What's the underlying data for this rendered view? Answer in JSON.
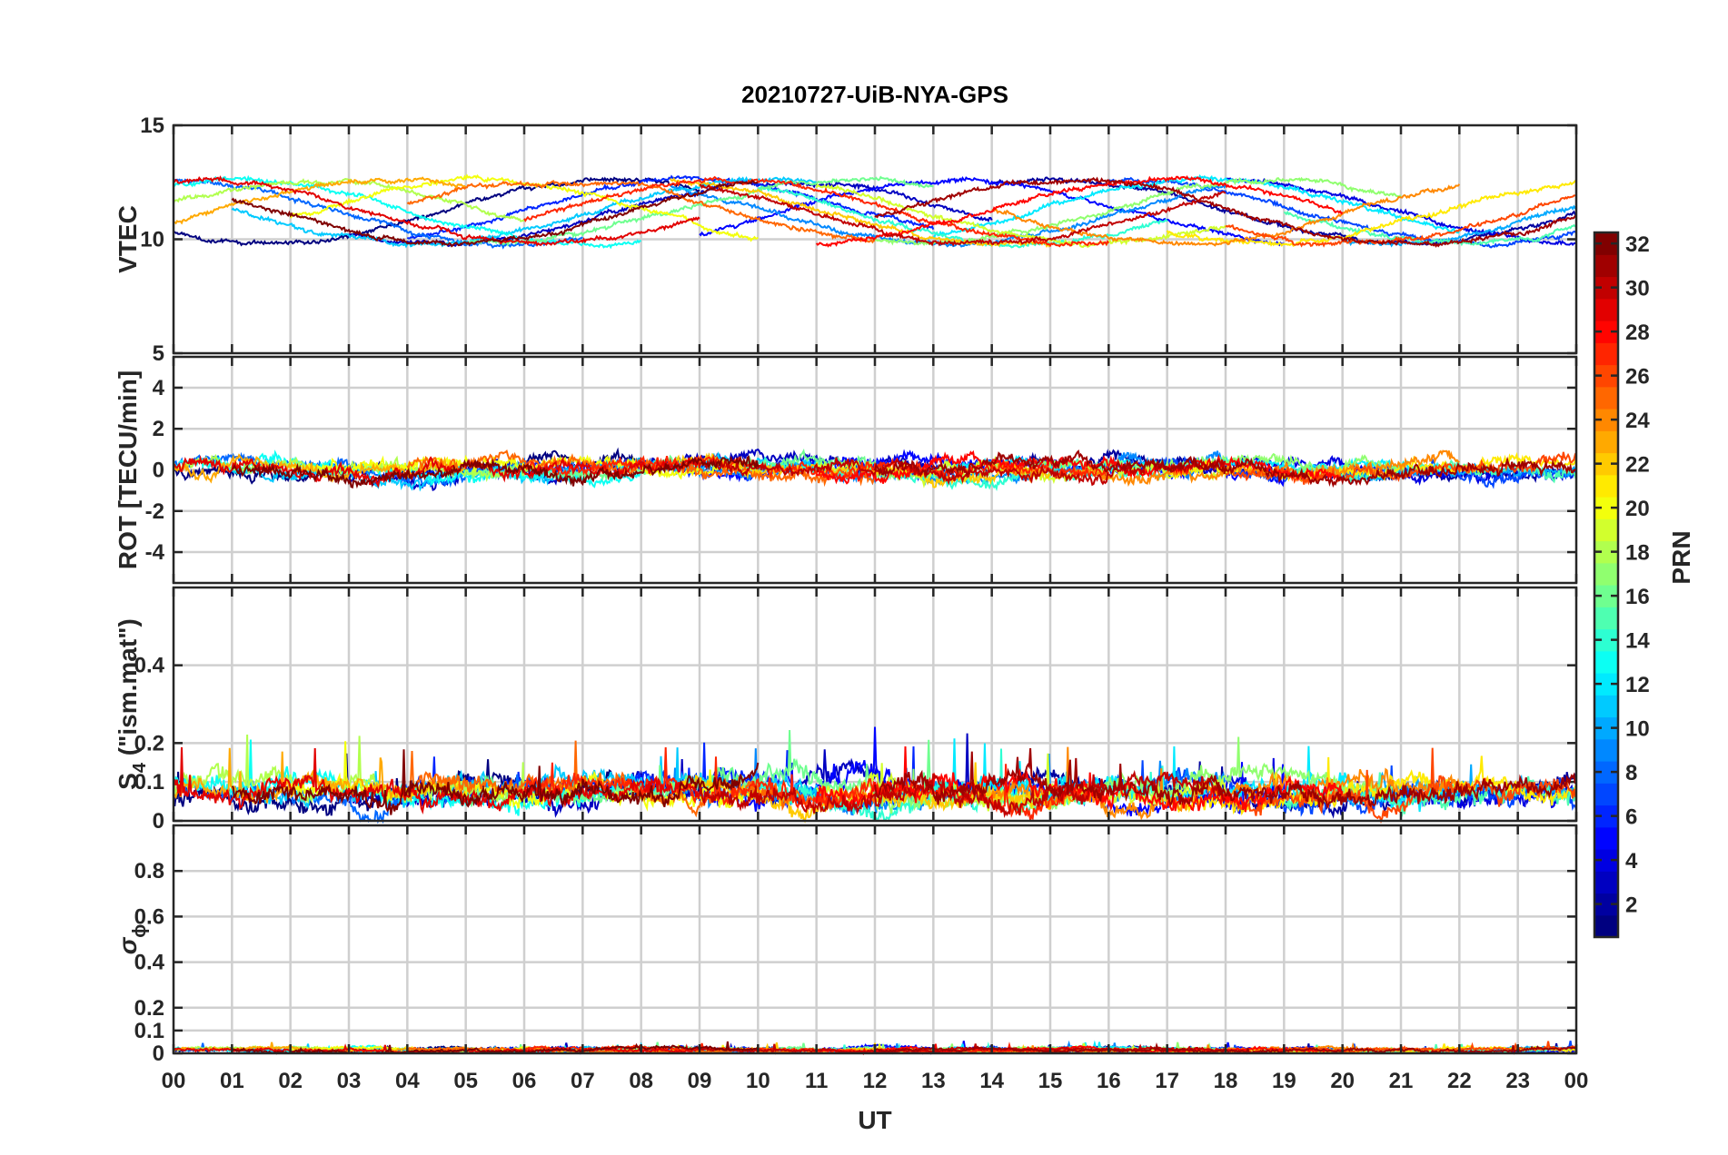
{
  "chart_data": {
    "type": "line",
    "title": "20210727-UiB-NYA-GPS",
    "xlabel": "UT",
    "x_ticks": [
      "00",
      "01",
      "02",
      "03",
      "04",
      "05",
      "06",
      "07",
      "08",
      "09",
      "10",
      "11",
      "12",
      "13",
      "14",
      "15",
      "16",
      "17",
      "18",
      "19",
      "20",
      "21",
      "22",
      "23",
      "00"
    ],
    "xlim_hours": [
      0,
      24
    ],
    "grid": true,
    "colorbar": {
      "label": "PRN",
      "range": [
        1,
        32
      ],
      "ticks": [
        "2",
        "4",
        "6",
        "8",
        "10",
        "12",
        "14",
        "16",
        "18",
        "20",
        "22",
        "24",
        "26",
        "28",
        "30",
        "32"
      ],
      "colormap": "jet"
    },
    "panels": [
      {
        "id": "vtec",
        "ylabel": "VTEC",
        "ylim": [
          5,
          15
        ],
        "yticks": [
          "5",
          "10",
          "15"
        ],
        "ytick_values": [
          5,
          10,
          15
        ],
        "baseline": 11.2,
        "amplitude": 1.4,
        "noise": 0.12
      },
      {
        "id": "rot",
        "ylabel": "ROT [TECU/min]",
        "ylim": [
          -5.5,
          5.5
        ],
        "yticks": [
          "-4",
          "-2",
          "0",
          "2",
          "4"
        ],
        "ytick_values": [
          -4,
          -2,
          0,
          2,
          4
        ],
        "baseline": 0.05,
        "amplitude": 0.25,
        "noise": 0.35
      },
      {
        "id": "s4",
        "ylabel_main": "S",
        "ylabel_sub": "4",
        "ylabel_rest": " (\"ism.mat\")",
        "ylim": [
          0,
          0.6
        ],
        "yticks": [
          "0",
          "0.1",
          "0.2",
          "0.4"
        ],
        "ytick_values": [
          0,
          0.1,
          0.2,
          0.4
        ],
        "baseline": 0.075,
        "amplitude": 0.02,
        "noise": 0.03
      },
      {
        "id": "sigma",
        "ylabel_main": "σ",
        "ylabel_sub": "ϕ",
        "ylim": [
          0,
          1
        ],
        "yticks": [
          "0",
          "0.1",
          "0.2",
          "0.4",
          "0.6",
          "0.8"
        ],
        "ytick_values": [
          0,
          0.1,
          0.2,
          0.4,
          0.6,
          0.8
        ],
        "baseline": 0.015,
        "amplitude": 0.005,
        "noise": 0.008
      }
    ],
    "series_count": 32,
    "series": [
      {
        "prn": 1,
        "start": 0,
        "end": 9
      },
      {
        "prn": 2,
        "start": 14,
        "end": 24
      },
      {
        "prn": 3,
        "start": 3,
        "end": 14
      },
      {
        "prn": 4,
        "start": 18,
        "end": 24
      },
      {
        "prn": 5,
        "start": 9,
        "end": 19
      },
      {
        "prn": 6,
        "start": 4,
        "end": 13
      },
      {
        "prn": 7,
        "start": 16,
        "end": 24
      },
      {
        "prn": 8,
        "start": 0,
        "end": 7
      },
      {
        "prn": 9,
        "start": 8.5,
        "end": 18
      },
      {
        "prn": 10,
        "start": 20,
        "end": 24
      },
      {
        "prn": 11,
        "start": 1,
        "end": 11
      },
      {
        "prn": 12,
        "start": 13,
        "end": 22
      },
      {
        "prn": 13,
        "start": 0,
        "end": 8
      },
      {
        "prn": 14,
        "start": 10,
        "end": 17
      },
      {
        "prn": 15,
        "start": 19,
        "end": 24
      },
      {
        "prn": 16,
        "start": 5,
        "end": 13
      },
      {
        "prn": 17,
        "start": 12,
        "end": 21
      },
      {
        "prn": 18,
        "start": 0,
        "end": 6
      },
      {
        "prn": 19,
        "start": 11,
        "end": 18
      },
      {
        "prn": 20,
        "start": 2,
        "end": 10
      },
      {
        "prn": 21,
        "start": 17,
        "end": 24
      },
      {
        "prn": 22,
        "start": 8.5,
        "end": 15
      },
      {
        "prn": 23,
        "start": 0,
        "end": 5
      },
      {
        "prn": 24,
        "start": 14,
        "end": 22
      },
      {
        "prn": 25,
        "start": 4,
        "end": 12
      },
      {
        "prn": 26,
        "start": 18,
        "end": 24
      },
      {
        "prn": 27,
        "start": 6,
        "end": 16
      },
      {
        "prn": 28,
        "start": 11,
        "end": 20
      },
      {
        "prn": 29,
        "start": 0,
        "end": 9
      },
      {
        "prn": 30,
        "start": 9,
        "end": 18
      },
      {
        "prn": 31,
        "start": 12,
        "end": 24
      },
      {
        "prn": 32,
        "start": 1,
        "end": 10
      }
    ]
  }
}
